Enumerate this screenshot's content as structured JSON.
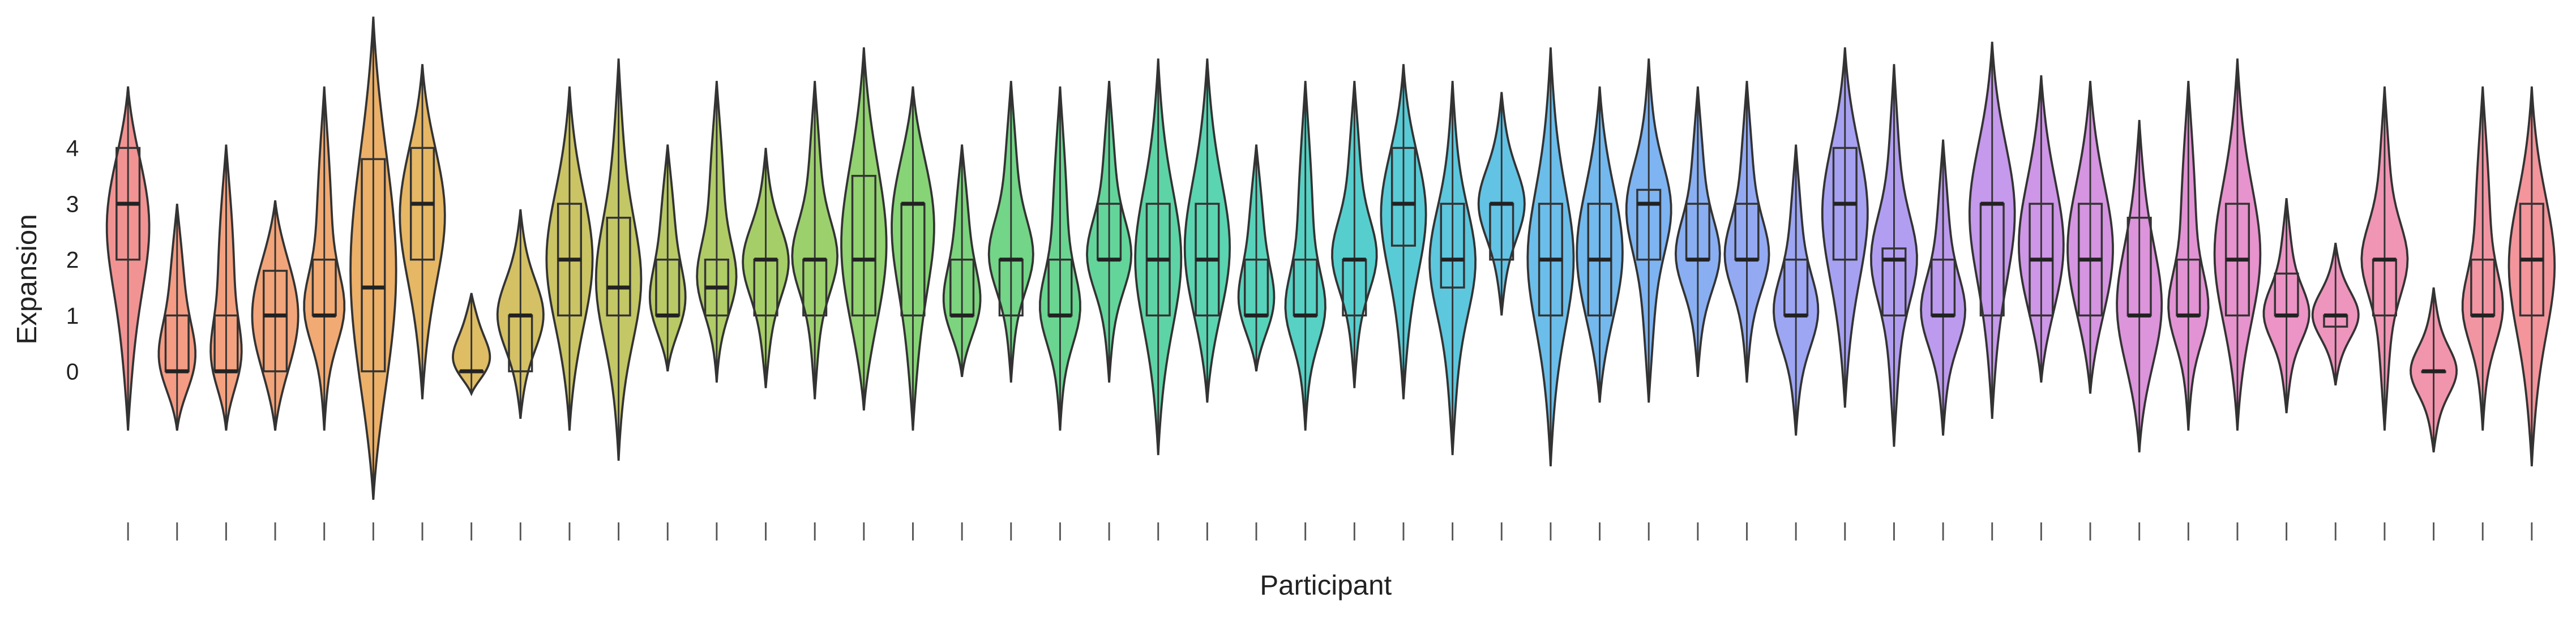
{
  "chart_data": {
    "type": "violin",
    "x_label": "Participant",
    "y_label": "Expansion",
    "categories": [
      null,
      null,
      null,
      null,
      null,
      null,
      null,
      null,
      null,
      null,
      null,
      null,
      null,
      null,
      null,
      null,
      null,
      null,
      null,
      null,
      null,
      null,
      null,
      null,
      null,
      null,
      null,
      null,
      null,
      null,
      null,
      null,
      null,
      null,
      null,
      null,
      null,
      null,
      null,
      null,
      null,
      null,
      null,
      null,
      null,
      null,
      null,
      null,
      null,
      null
    ],
    "ylim": [
      -2.5,
      6.5
    ],
    "yticks": [
      0,
      1,
      2,
      3,
      4
    ],
    "violins": [
      {
        "color": "#f08080",
        "min": -1.06,
        "q1": 2,
        "median": 3,
        "q3": 4,
        "max": 5.1
      },
      {
        "color": "#f38b6e",
        "min": -1.06,
        "q1": 0,
        "median": 0,
        "q3": 1,
        "max": 3.0
      },
      {
        "color": "#f2906a",
        "min": -1.06,
        "q1": 0,
        "median": 0,
        "q3": 1,
        "max": 4.06
      },
      {
        "color": "#f09563",
        "min": -1.06,
        "q1": 0,
        "median": 1,
        "q3": 1.8,
        "max": 3.06
      },
      {
        "color": "#ee9b5a",
        "min": -1.06,
        "q1": 1,
        "median": 1,
        "q3": 2,
        "max": 5.1
      },
      {
        "color": "#e9a24f",
        "min": -2.3,
        "q1": 0,
        "median": 1.5,
        "q3": 3.8,
        "max": 6.35
      },
      {
        "color": "#e2aa4a",
        "min": -0.5,
        "q1": 2,
        "median": 3,
        "q3": 4,
        "max": 5.5
      },
      {
        "color": "#d8b14a",
        "min": -0.4,
        "q1": 0,
        "median": 0,
        "q3": 0,
        "max": 1.4
      },
      {
        "color": "#ccb64a",
        "min": -0.85,
        "q1": 0,
        "median": 1,
        "q3": 1,
        "max": 2.9
      },
      {
        "color": "#c2ba4a",
        "min": -1.06,
        "q1": 1,
        "median": 2,
        "q3": 3,
        "max": 5.1
      },
      {
        "color": "#b8bd4a",
        "min": -1.6,
        "q1": 1,
        "median": 1.5,
        "q3": 2.75,
        "max": 5.6
      },
      {
        "color": "#adc04b",
        "min": 0,
        "q1": 1,
        "median": 1,
        "q3": 2,
        "max": 4.06
      },
      {
        "color": "#a2c34c",
        "min": -0.2,
        "q1": 1,
        "median": 1.5,
        "q3": 2,
        "max": 5.2
      },
      {
        "color": "#96c64e",
        "min": -0.3,
        "q1": 1,
        "median": 2,
        "q3": 2,
        "max": 4
      },
      {
        "color": "#8bc853",
        "min": -0.5,
        "q1": 1,
        "median": 2,
        "q3": 2,
        "max": 5.2
      },
      {
        "color": "#7fca58",
        "min": -0.7,
        "q1": 1,
        "median": 2,
        "q3": 3.5,
        "max": 5.8
      },
      {
        "color": "#72cc5f",
        "min": -1.06,
        "q1": 1,
        "median": 3,
        "q3": 3,
        "max": 5.1
      },
      {
        "color": "#66cd67",
        "min": -0.1,
        "q1": 1,
        "median": 1,
        "q3": 2,
        "max": 4.06
      },
      {
        "color": "#5ace72",
        "min": -0.2,
        "q1": 1,
        "median": 2,
        "q3": 2,
        "max": 5.2
      },
      {
        "color": "#50ce7e",
        "min": -1.06,
        "q1": 1,
        "median": 1,
        "q3": 2,
        "max": 5.1
      },
      {
        "color": "#48ce8a",
        "min": -0.2,
        "q1": 2,
        "median": 2,
        "q3": 3,
        "max": 5.2
      },
      {
        "color": "#42cd97",
        "min": -1.5,
        "q1": 1,
        "median": 2,
        "q3": 3,
        "max": 5.6
      },
      {
        "color": "#3ecda3",
        "min": -0.56,
        "q1": 1,
        "median": 2,
        "q3": 3,
        "max": 5.6
      },
      {
        "color": "#3bcbaf",
        "min": 0,
        "q1": 1,
        "median": 1,
        "q3": 2,
        "max": 4.06
      },
      {
        "color": "#3ac9ba",
        "min": -1.06,
        "q1": 1,
        "median": 1,
        "q3": 2,
        "max": 5.2
      },
      {
        "color": "#3ac6c5",
        "min": -0.3,
        "q1": 1,
        "median": 2,
        "q3": 2,
        "max": 5.2
      },
      {
        "color": "#3cc2cf",
        "min": -0.5,
        "q1": 2.25,
        "median": 3,
        "q3": 4,
        "max": 5.5
      },
      {
        "color": "#41bdd8",
        "min": -1.5,
        "q1": 1.5,
        "median": 2,
        "q3": 3,
        "max": 5.2
      },
      {
        "color": "#48b8e0",
        "min": 1,
        "q1": 2,
        "median": 3,
        "q3": 3,
        "max": 5
      },
      {
        "color": "#51b3e6",
        "min": -1.7,
        "q1": 1,
        "median": 2,
        "q3": 3,
        "max": 5.8
      },
      {
        "color": "#5badeb",
        "min": -0.56,
        "q1": 1,
        "median": 2,
        "q3": 3,
        "max": 5.1
      },
      {
        "color": "#67a7ee",
        "min": -0.56,
        "q1": 2,
        "median": 3,
        "q3": 3.25,
        "max": 5.6
      },
      {
        "color": "#74a1f0",
        "min": -0.1,
        "q1": 2,
        "median": 2,
        "q3": 3,
        "max": 5.1
      },
      {
        "color": "#809bf1",
        "min": -0.2,
        "q1": 2,
        "median": 2,
        "q3": 3,
        "max": 5.2
      },
      {
        "color": "#8c96f1",
        "min": -1.15,
        "q1": 1,
        "median": 1,
        "q3": 2,
        "max": 4.06
      },
      {
        "color": "#9891f0",
        "min": -0.65,
        "q1": 2,
        "median": 3,
        "q3": 4,
        "max": 5.8
      },
      {
        "color": "#a48dee",
        "min": -1.35,
        "q1": 1,
        "median": 2,
        "q3": 2.2,
        "max": 5.5
      },
      {
        "color": "#b08aeb",
        "min": -1.15,
        "q1": 1,
        "median": 1,
        "q3": 2,
        "max": 4.15
      },
      {
        "color": "#bb87e7",
        "min": -0.85,
        "q1": 1,
        "median": 3,
        "q3": 3,
        "max": 5.9
      },
      {
        "color": "#c584e2",
        "min": -0.2,
        "q1": 1,
        "median": 2,
        "q3": 3,
        "max": 5.3
      },
      {
        "color": "#ce82dc",
        "min": -0.4,
        "q1": 1,
        "median": 2,
        "q3": 3,
        "max": 5.2
      },
      {
        "color": "#d681d5",
        "min": -1.45,
        "q1": 1,
        "median": 1,
        "q3": 2.75,
        "max": 4.5
      },
      {
        "color": "#dd80cd",
        "min": -1.06,
        "q1": 1,
        "median": 1,
        "q3": 2,
        "max": 5.2
      },
      {
        "color": "#e380c4",
        "min": -1.06,
        "q1": 1,
        "median": 2,
        "q3": 3,
        "max": 5.6
      },
      {
        "color": "#e781bb",
        "min": -0.75,
        "q1": 1,
        "median": 1,
        "q3": 1.75,
        "max": 3.1
      },
      {
        "color": "#ea82b1",
        "min": -0.25,
        "q1": 0.8,
        "median": 1,
        "q3": 1,
        "max": 2.3
      },
      {
        "color": "#ed82a7",
        "min": -1.06,
        "q1": 1,
        "median": 2,
        "q3": 2,
        "max": 5.1
      },
      {
        "color": "#ef829d",
        "min": -1.45,
        "q1": 0,
        "median": 0,
        "q3": 0,
        "max": 1.5
      },
      {
        "color": "#f08293",
        "min": -1.06,
        "q1": 1,
        "median": 1,
        "q3": 2,
        "max": 5.1
      },
      {
        "color": "#f1828a",
        "min": -1.7,
        "q1": 1,
        "median": 2,
        "q3": 3,
        "max": 5.1
      }
    ]
  }
}
